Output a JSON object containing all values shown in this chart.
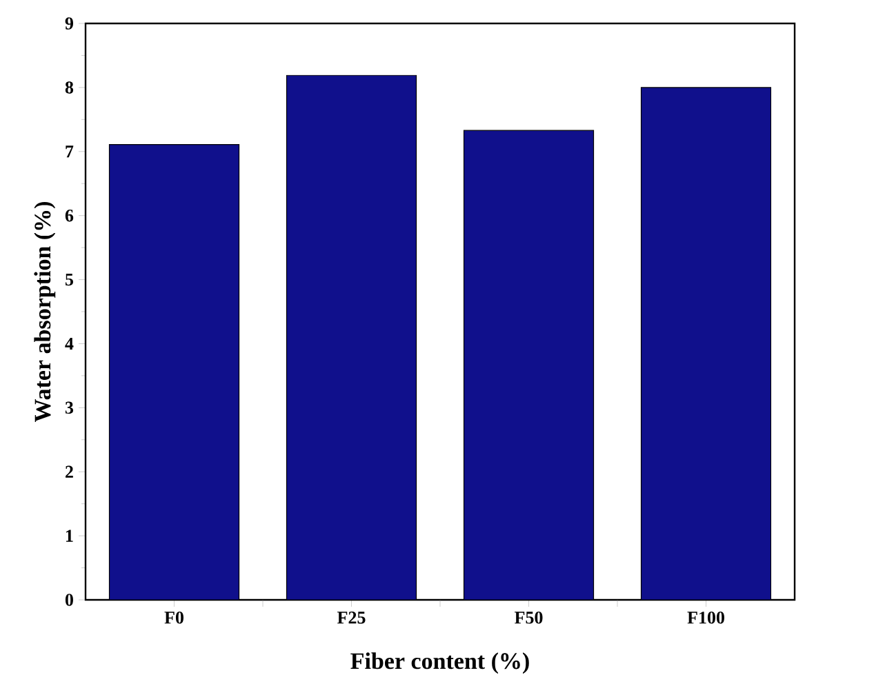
{
  "chart_data": {
    "type": "bar",
    "xlabel": "Fiber content (%)",
    "ylabel": "Water absorption (%)",
    "categories": [
      "F0",
      "F25",
      "F50",
      "F100"
    ],
    "values": [
      7.11,
      8.19,
      7.33,
      8.0
    ],
    "color": "#10108c",
    "ylim": [
      0,
      9
    ],
    "yticks": [
      0,
      1,
      2,
      3,
      4,
      5,
      6,
      7,
      8,
      9
    ],
    "grid": false
  }
}
